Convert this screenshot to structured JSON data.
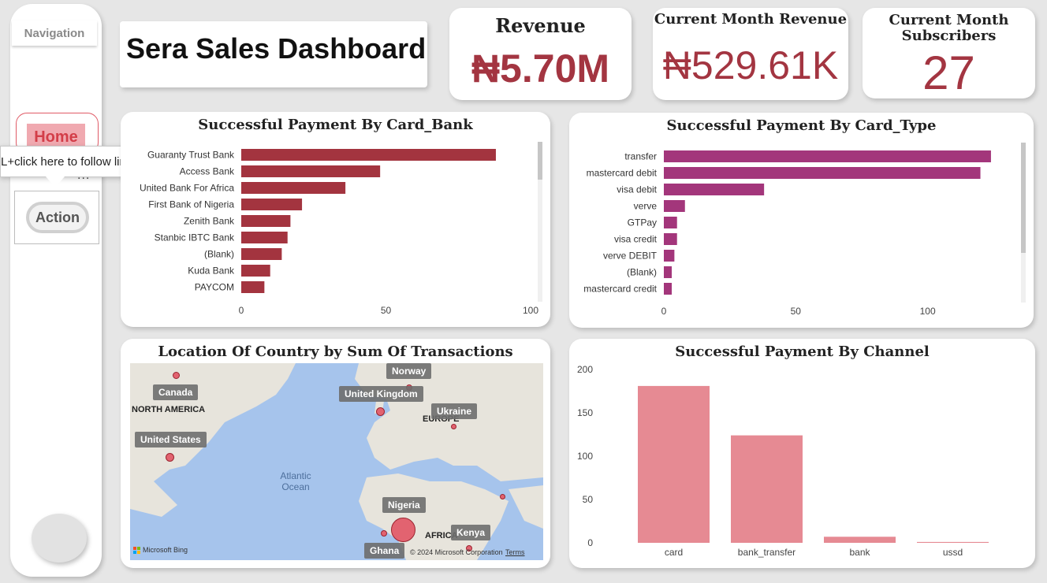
{
  "navigation": {
    "title": "Navigation",
    "home_label": "Home",
    "tooltip": "L+click here to follow link",
    "more": "...",
    "action_label": "Action"
  },
  "header": {
    "title": "Sera Sales Dashboard"
  },
  "kpis": {
    "revenue": {
      "label": "Revenue",
      "value": "₦5.70M"
    },
    "month_revenue": {
      "label": "Current Month Revenue",
      "value": "₦529.61K"
    },
    "month_subscribers": {
      "label": "Current Month Subscribers",
      "value": "27"
    }
  },
  "panels": {
    "card_bank": {
      "title": "Successful Payment By Card_Bank"
    },
    "card_type": {
      "title": "Successful Payment By Card_Type"
    },
    "location": {
      "title": "Location Of Country by Sum Of Transactions"
    },
    "channel": {
      "title": "Successful Payment By Channel"
    }
  },
  "map": {
    "labels": {
      "norway": "Norway",
      "canada": "Canada",
      "uk": "United Kingdom",
      "ukraine": "Ukraine",
      "us": "United States",
      "nigeria": "Nigeria",
      "kenya": "Kenya",
      "ghana": "Ghana"
    },
    "regions": {
      "north_america": "NORTH AMERICA",
      "europe": "EUROPE",
      "africa": "AFRICA"
    },
    "ocean_line1": "Atlantic",
    "ocean_line2": "Ocean",
    "bing": "Microsoft Bing",
    "copyright": "© 2024 Microsoft Corporation",
    "terms": "Terms"
  },
  "colors": {
    "bank_bar": "#a3343f",
    "type_bar": "#a3367b",
    "channel_bar": "#e68a93",
    "accent": "#a33541"
  },
  "chart_data": [
    {
      "type": "bar",
      "orientation": "horizontal",
      "title": "Successful Payment By Card_Bank",
      "categories": [
        "Guaranty Trust Bank",
        "Access Bank",
        "United Bank For Africa",
        "First Bank of Nigeria",
        "Zenith Bank",
        "Stanbic IBTC Bank",
        "(Blank)",
        "Kuda Bank",
        "PAYCOM"
      ],
      "values": [
        88,
        48,
        36,
        21,
        17,
        16,
        14,
        10,
        8
      ],
      "xlim": [
        0,
        100
      ],
      "xticks": [
        "0",
        "50",
        "100"
      ]
    },
    {
      "type": "bar",
      "orientation": "horizontal",
      "title": "Successful Payment By Card_Type",
      "categories": [
        "transfer",
        "mastercard debit",
        "visa debit",
        "verve",
        "GTPay",
        "visa credit",
        "verve DEBIT",
        "(Blank)",
        "mastercard credit"
      ],
      "values": [
        124,
        120,
        38,
        8,
        5,
        5,
        4,
        3,
        3
      ],
      "xlim": [
        0,
        130
      ],
      "xticks": [
        "0",
        "50",
        "100"
      ]
    },
    {
      "type": "bar",
      "orientation": "vertical",
      "title": "Successful Payment By Channel",
      "categories": [
        "card",
        "bank_transfer",
        "bank",
        "ussd"
      ],
      "values": [
        181,
        124,
        7,
        1
      ],
      "ylim": [
        0,
        200
      ],
      "yticks": [
        "0",
        "50",
        "100",
        "150",
        "200"
      ]
    }
  ]
}
